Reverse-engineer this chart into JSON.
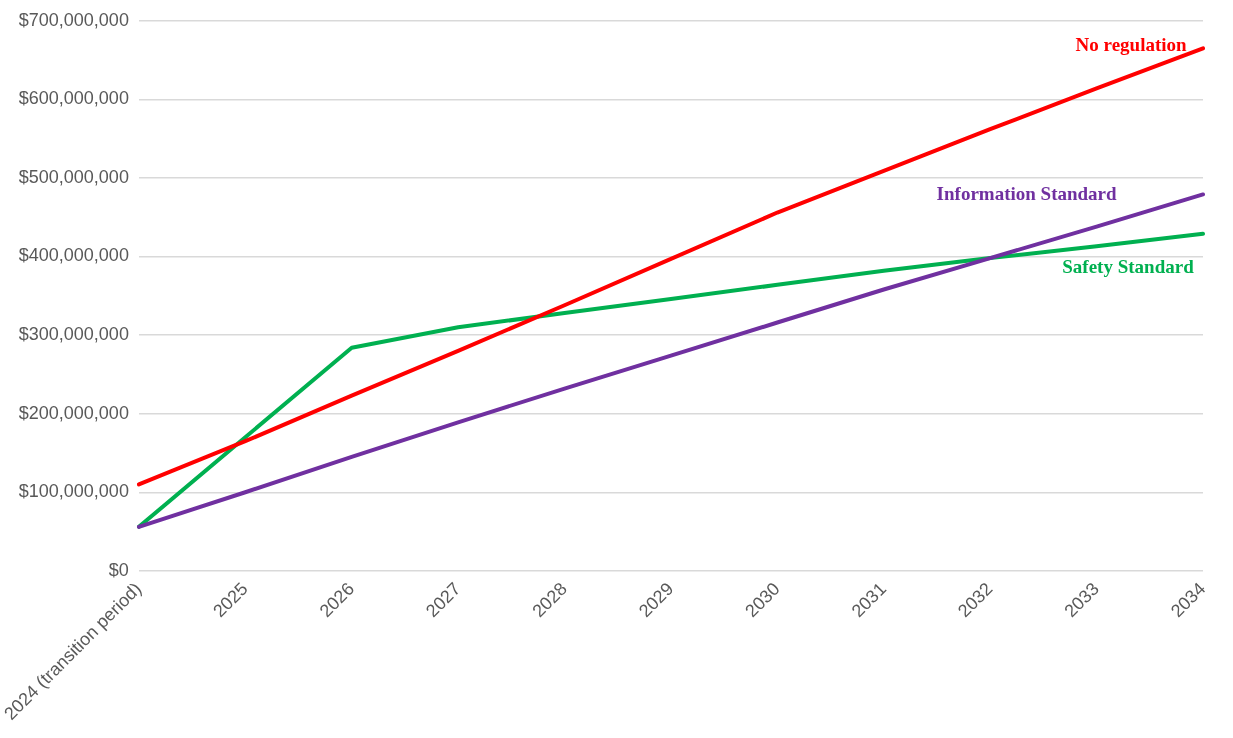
{
  "chart_data": {
    "type": "line",
    "categories": [
      "2024 (transition period)",
      "2025",
      "2026",
      "2027",
      "2028",
      "2029",
      "2030",
      "2031",
      "2032",
      "2033",
      "2034"
    ],
    "series": [
      {
        "name": "No regulation",
        "color": "#ff0000",
        "values": [
          110000000,
          165000000,
          223000000,
          280000000,
          338000000,
          397000000,
          456000000,
          509000000,
          562000000,
          614000000,
          665000000
        ]
      },
      {
        "name": "Information Standard",
        "color": "#7030a0",
        "values": [
          56000000,
          100000000,
          145000000,
          189000000,
          232000000,
          274000000,
          316000000,
          358000000,
          398000000,
          438000000,
          479000000
        ]
      },
      {
        "name": "Safety Standard",
        "color": "#00b050",
        "values": [
          56000000,
          170000000,
          284000000,
          310000000,
          328000000,
          346000000,
          364000000,
          382000000,
          398000000,
          413000000,
          429000000
        ]
      }
    ],
    "ylim": [
      0,
      700000000
    ],
    "yticks": [
      {
        "value": 0,
        "label": "$0"
      },
      {
        "value": 100000000,
        "label": "$100,000,000"
      },
      {
        "value": 200000000,
        "label": "$200,000,000"
      },
      {
        "value": 300000000,
        "label": "$300,000,000"
      },
      {
        "value": 400000000,
        "label": "$400,000,000"
      },
      {
        "value": 500000000,
        "label": "$500,000,000"
      },
      {
        "value": 600000000,
        "label": "$600,000,000"
      },
      {
        "value": 700000000,
        "label": "$700,000,000"
      }
    ],
    "grid": "y",
    "legend": false,
    "marker": "none",
    "line_style": "solid"
  }
}
